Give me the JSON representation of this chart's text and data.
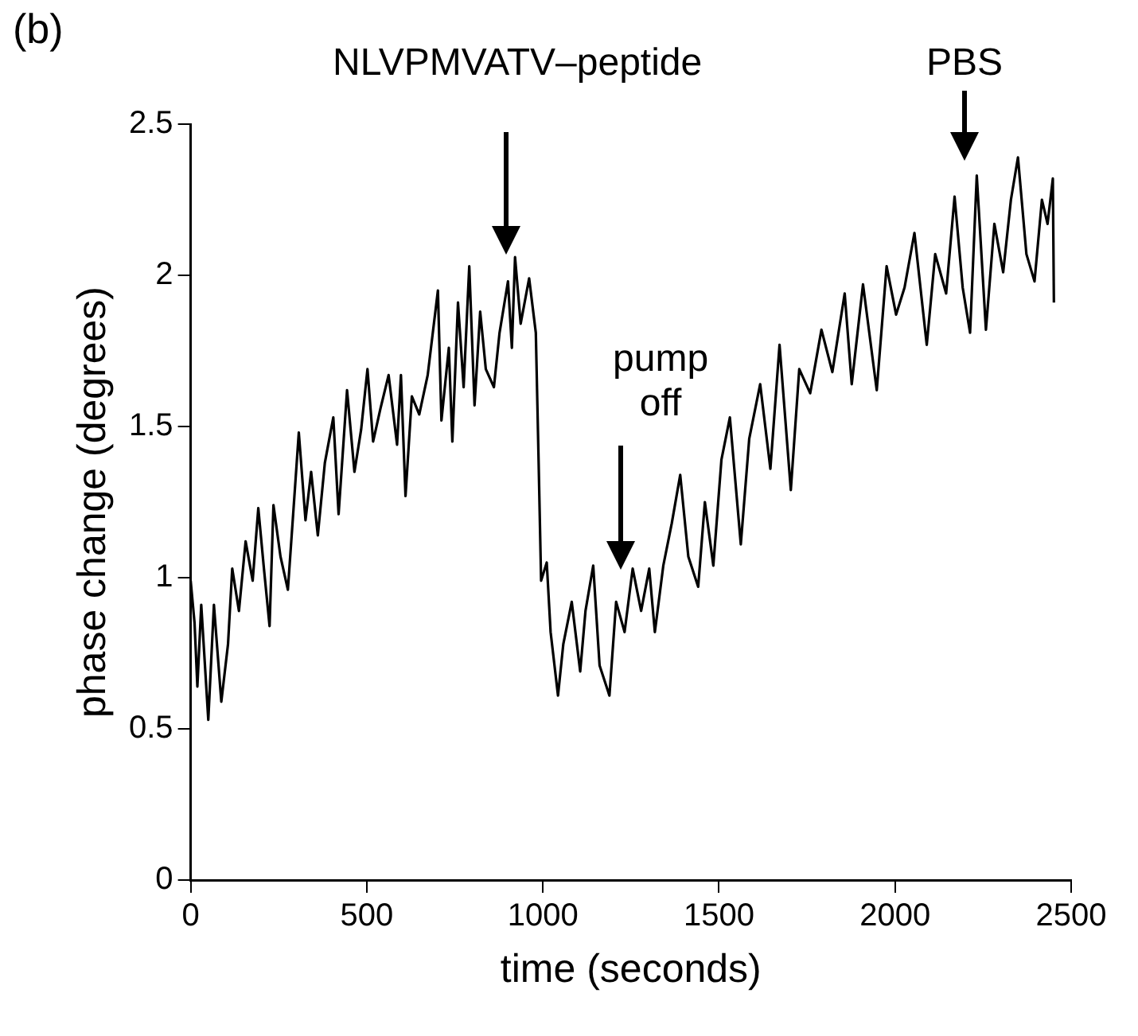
{
  "chart_data": {
    "type": "line",
    "xlabel": "time (seconds)",
    "ylabel": "phase change (degrees)",
    "xlim": [
      0,
      2500
    ],
    "xticks": [
      0,
      500,
      1000,
      1500,
      2000,
      2500
    ],
    "ylim": [
      0,
      2.5
    ],
    "yticks": [
      0,
      0.5,
      1,
      1.5,
      2,
      2.5
    ],
    "grid": false,
    "legend": false,
    "marker": "none",
    "line_style": "solid",
    "annotations": [
      "(b)",
      "NLVPMVATV–peptide",
      "pump off",
      "PBS"
    ],
    "series": [
      {
        "color": "#000000",
        "x": [
          0,
          11,
          19,
          30,
          50,
          66,
          87,
          106,
          118,
          137,
          156,
          176,
          192,
          208,
          224,
          235,
          255,
          276,
          291,
          307,
          326,
          342,
          361,
          381,
          405,
          420,
          444,
          465,
          484,
          502,
          518,
          539,
          562,
          586,
          597,
          610,
          628,
          649,
          673,
          702,
          712,
          733,
          743,
          759,
          775,
          791,
          806,
          822,
          838,
          861,
          877,
          901,
          912,
          921,
          937,
          961,
          980,
          988,
          995,
          1011,
          1022,
          1043,
          1058,
          1082,
          1106,
          1121,
          1143,
          1161,
          1189,
          1208,
          1232,
          1255,
          1279,
          1302,
          1318,
          1342,
          1366,
          1390,
          1413,
          1441,
          1460,
          1484,
          1507,
          1531,
          1562,
          1586,
          1617,
          1646,
          1672,
          1704,
          1728,
          1759,
          1791,
          1822,
          1857,
          1877,
          1909,
          1948,
          1976,
          2003,
          2027,
          2055,
          2090,
          2114,
          2145,
          2169,
          2192,
          2213,
          2232,
          2258,
          2282,
          2307,
          2329,
          2349,
          2373,
          2396,
          2417,
          2433,
          2448,
          2451
        ],
        "values": [
          0.99,
          0.85,
          0.64,
          0.91,
          0.53,
          0.91,
          0.59,
          0.78,
          1.03,
          0.89,
          1.12,
          0.99,
          1.23,
          1.03,
          0.84,
          1.24,
          1.07,
          0.96,
          1.21,
          1.48,
          1.19,
          1.35,
          1.14,
          1.38,
          1.53,
          1.21,
          1.62,
          1.35,
          1.49,
          1.69,
          1.45,
          1.56,
          1.67,
          1.44,
          1.67,
          1.27,
          1.6,
          1.54,
          1.67,
          1.95,
          1.52,
          1.76,
          1.45,
          1.91,
          1.63,
          2.03,
          1.57,
          1.88,
          1.69,
          1.63,
          1.81,
          1.98,
          1.76,
          2.06,
          1.84,
          1.99,
          1.81,
          1.38,
          0.99,
          1.05,
          0.82,
          0.61,
          0.78,
          0.92,
          0.69,
          0.89,
          1.04,
          0.71,
          0.61,
          0.92,
          0.82,
          1.03,
          0.89,
          1.03,
          0.82,
          1.04,
          1.18,
          1.34,
          1.07,
          0.97,
          1.25,
          1.04,
          1.39,
          1.53,
          1.11,
          1.46,
          1.64,
          1.36,
          1.77,
          1.29,
          1.69,
          1.61,
          1.82,
          1.68,
          1.94,
          1.64,
          1.97,
          1.62,
          2.03,
          1.87,
          1.96,
          2.14,
          1.77,
          2.07,
          1.94,
          2.26,
          1.96,
          1.81,
          2.33,
          1.82,
          2.17,
          2.01,
          2.25,
          2.39,
          2.07,
          1.98,
          2.25,
          2.17,
          2.32,
          1.91
        ]
      }
    ]
  }
}
